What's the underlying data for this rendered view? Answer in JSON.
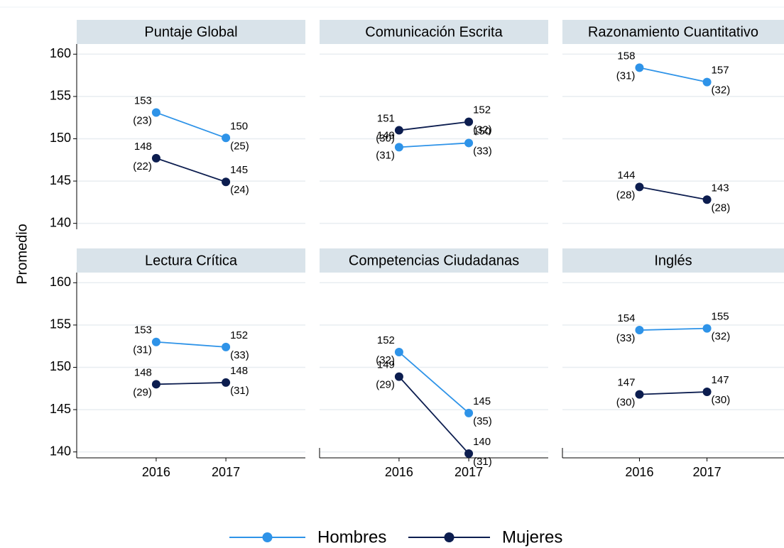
{
  "y_label": "Promedio",
  "chart_data": [
    {
      "type": "line",
      "title": "Puntaje Global",
      "x": [
        2016,
        2017
      ],
      "xlim": [
        2014.86,
        2018.14
      ],
      "ylim": [
        139.3,
        161.2
      ],
      "yticks": [
        140,
        145,
        150,
        155,
        160
      ],
      "series": [
        {
          "name": "Hombres",
          "color": "#2e93e8",
          "values": [
            153.1,
            150.1
          ],
          "value_labels": [
            "153",
            "150"
          ],
          "sd_labels": [
            "(23)",
            "(25)"
          ]
        },
        {
          "name": "Mujeres",
          "color": "#0c1d4f",
          "values": [
            147.7,
            144.9
          ],
          "value_labels": [
            "148",
            "145"
          ],
          "sd_labels": [
            "(22)",
            "(24)"
          ]
        }
      ]
    },
    {
      "type": "line",
      "title": "Comunicación Escrita",
      "x": [
        2016,
        2017
      ],
      "xlim": [
        2014.86,
        2018.14
      ],
      "ylim": [
        139.3,
        161.2
      ],
      "yticks": [
        140,
        145,
        150,
        155,
        160
      ],
      "series": [
        {
          "name": "Hombres",
          "color": "#2e93e8",
          "values": [
            149.0,
            149.5
          ],
          "value_labels": [
            "149",
            "150"
          ],
          "sd_labels": [
            "(31)",
            "(33)"
          ]
        },
        {
          "name": "Mujeres",
          "color": "#0c1d4f",
          "values": [
            151.0,
            152.0
          ],
          "value_labels": [
            "151",
            "152"
          ],
          "sd_labels": [
            "(30)",
            "(32)"
          ]
        }
      ]
    },
    {
      "type": "line",
      "title": "Razonamiento Cuantitativo",
      "x": [
        2016,
        2017
      ],
      "xlim": [
        2014.86,
        2018.14
      ],
      "ylim": [
        139.3,
        161.2
      ],
      "yticks": [
        140,
        145,
        150,
        155,
        160
      ],
      "series": [
        {
          "name": "Hombres",
          "color": "#2e93e8",
          "values": [
            158.4,
            156.7
          ],
          "value_labels": [
            "158",
            "157"
          ],
          "sd_labels": [
            "(31)",
            "(32)"
          ]
        },
        {
          "name": "Mujeres",
          "color": "#0c1d4f",
          "values": [
            144.3,
            142.8
          ],
          "value_labels": [
            "144",
            "143"
          ],
          "sd_labels": [
            "(28)",
            "(28)"
          ]
        }
      ]
    },
    {
      "type": "line",
      "title": "Lectura Crítica",
      "x": [
        2016,
        2017
      ],
      "xlim": [
        2014.86,
        2018.14
      ],
      "ylim": [
        139.3,
        161.2
      ],
      "yticks": [
        140,
        145,
        150,
        155,
        160
      ],
      "xticks": [
        2016,
        2017
      ],
      "series": [
        {
          "name": "Hombres",
          "color": "#2e93e8",
          "values": [
            153.0,
            152.4
          ],
          "value_labels": [
            "153",
            "152"
          ],
          "sd_labels": [
            "(31)",
            "(33)"
          ]
        },
        {
          "name": "Mujeres",
          "color": "#0c1d4f",
          "values": [
            148.0,
            148.2
          ],
          "value_labels": [
            "148",
            "148"
          ],
          "sd_labels": [
            "(29)",
            "(31)"
          ]
        }
      ]
    },
    {
      "type": "line",
      "title": "Competencias Ciudadanas",
      "x": [
        2016,
        2017
      ],
      "xlim": [
        2014.86,
        2018.14
      ],
      "ylim": [
        139.3,
        161.2
      ],
      "yticks": [
        140,
        145,
        150,
        155,
        160
      ],
      "xticks": [
        2016,
        2017
      ],
      "series": [
        {
          "name": "Hombres",
          "color": "#2e93e8",
          "values": [
            151.8,
            144.6
          ],
          "value_labels": [
            "152",
            "145"
          ],
          "sd_labels": [
            "(32)",
            "(35)"
          ]
        },
        {
          "name": "Mujeres",
          "color": "#0c1d4f",
          "values": [
            148.9,
            139.8
          ],
          "value_labels": [
            "149",
            "140"
          ],
          "sd_labels": [
            "(29)",
            "(31)"
          ]
        }
      ]
    },
    {
      "type": "line",
      "title": "Inglés",
      "x": [
        2016,
        2017
      ],
      "xlim": [
        2014.86,
        2018.14
      ],
      "ylim": [
        139.3,
        161.2
      ],
      "yticks": [
        140,
        145,
        150,
        155,
        160
      ],
      "xticks": [
        2016,
        2017
      ],
      "series": [
        {
          "name": "Hombres",
          "color": "#2e93e8",
          "values": [
            154.4,
            154.6
          ],
          "value_labels": [
            "154",
            "155"
          ],
          "sd_labels": [
            "(33)",
            "(32)"
          ]
        },
        {
          "name": "Mujeres",
          "color": "#0c1d4f",
          "values": [
            146.8,
            147.1
          ],
          "value_labels": [
            "147",
            "147"
          ],
          "sd_labels": [
            "(30)",
            "(30)"
          ]
        }
      ]
    }
  ]
}
